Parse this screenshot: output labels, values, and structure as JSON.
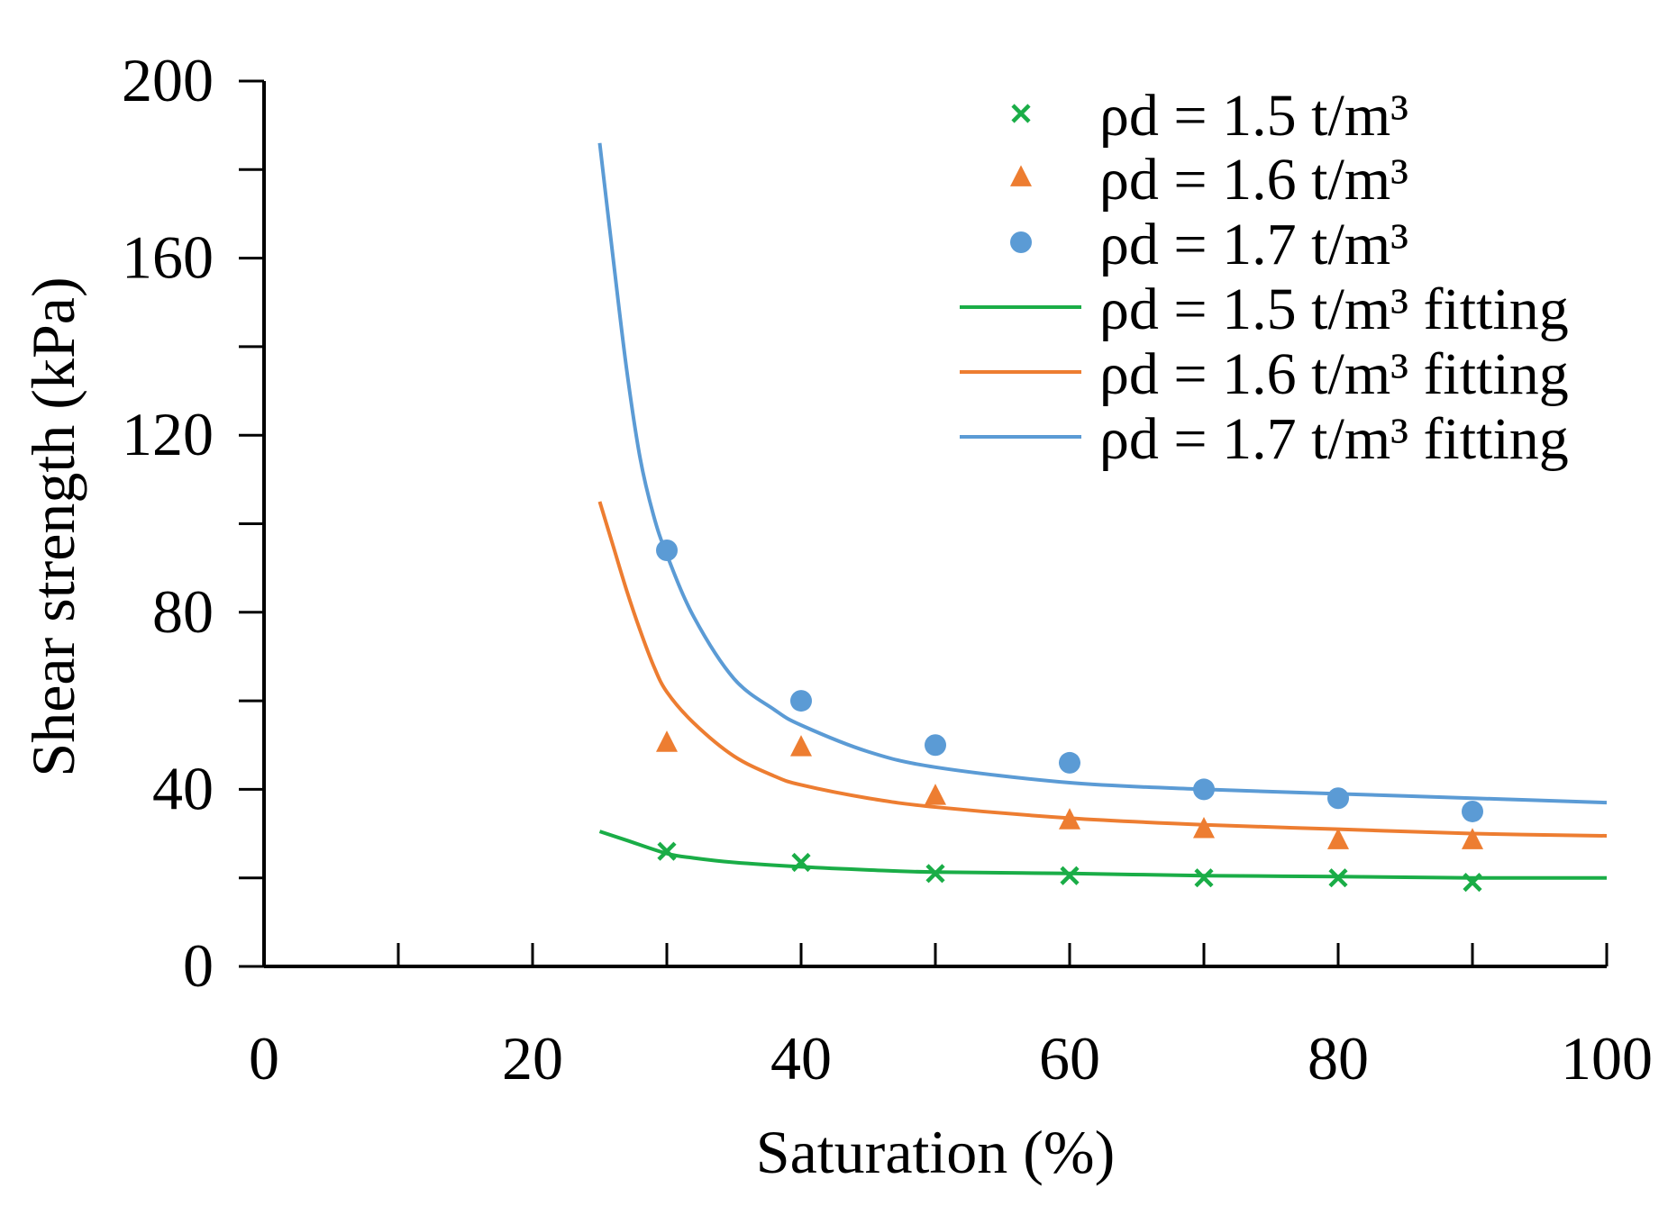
{
  "chart_data": {
    "type": "scatter",
    "title": "",
    "xlabel": "Saturation (%)",
    "ylabel": "Shear strength (kPa)",
    "xlim": [
      0,
      100
    ],
    "ylim": [
      0,
      200
    ],
    "x_ticks": [
      0,
      20,
      40,
      60,
      80,
      100
    ],
    "y_ticks": [
      0,
      40,
      80,
      120,
      160,
      200
    ],
    "x_tick_labels": [
      "0",
      "20",
      "40",
      "60",
      "80",
      "100"
    ],
    "y_tick_labels": [
      "0",
      "40",
      "80",
      "120",
      "160",
      "200"
    ],
    "x_minor_ticks": [
      10,
      30,
      50,
      70,
      90
    ],
    "y_minor_ticks": [
      20,
      60,
      100,
      140,
      180
    ],
    "legend_position": "top-right",
    "series": [
      {
        "name": "ρd = 1.5 t/m³",
        "kind": "points",
        "marker": "x",
        "color": "#1aad47",
        "x": [
          30,
          40,
          50,
          60,
          70,
          80,
          90
        ],
        "values": [
          26,
          23.5,
          21,
          20.5,
          20,
          20,
          19
        ]
      },
      {
        "name": "ρd = 1.6 t/m³",
        "kind": "points",
        "marker": "triangle",
        "color": "#ed7d31",
        "x": [
          30,
          40,
          50,
          60,
          70,
          80,
          90
        ],
        "values": [
          50.5,
          49.5,
          38.5,
          33,
          31,
          28.5,
          28.5
        ]
      },
      {
        "name": "ρd = 1.7 t/m³",
        "kind": "points",
        "marker": "circle",
        "color": "#5b9bd5",
        "x": [
          30,
          40,
          50,
          60,
          70,
          80,
          90
        ],
        "values": [
          94,
          60,
          50,
          46,
          40,
          38,
          35
        ]
      },
      {
        "name": "ρd = 1.5 t/m³ fitting",
        "kind": "line",
        "color": "#1aad47",
        "x": [
          25,
          27,
          30,
          32,
          35,
          40,
          45,
          50,
          60,
          70,
          80,
          90,
          100
        ],
        "values": [
          30.5,
          28.5,
          25.5,
          24.5,
          23.5,
          22.5,
          21.8,
          21.3,
          21,
          20.5,
          20.3,
          20,
          20
        ]
      },
      {
        "name": "ρd = 1.6 t/m³ fitting",
        "kind": "line",
        "color": "#ed7d31",
        "x": [
          25,
          26,
          27,
          28,
          29,
          30,
          32,
          35,
          38,
          40,
          45,
          50,
          60,
          70,
          80,
          90,
          100
        ],
        "values": [
          105,
          95,
          85,
          76,
          68,
          62,
          55,
          47.5,
          43,
          41,
          38,
          36,
          33.5,
          32,
          31,
          30,
          29.5
        ]
      },
      {
        "name": "ρd = 1.7 t/m³ fitting",
        "kind": "line",
        "color": "#5b9bd5",
        "x": [
          25,
          26,
          27,
          28,
          29,
          30,
          32,
          35,
          38,
          40,
          45,
          50,
          60,
          70,
          80,
          90,
          100
        ],
        "values": [
          186,
          160,
          135,
          115,
          102,
          93,
          79,
          65,
          58,
          54.5,
          48.5,
          45,
          41.5,
          40,
          39,
          38,
          37
        ]
      }
    ]
  }
}
